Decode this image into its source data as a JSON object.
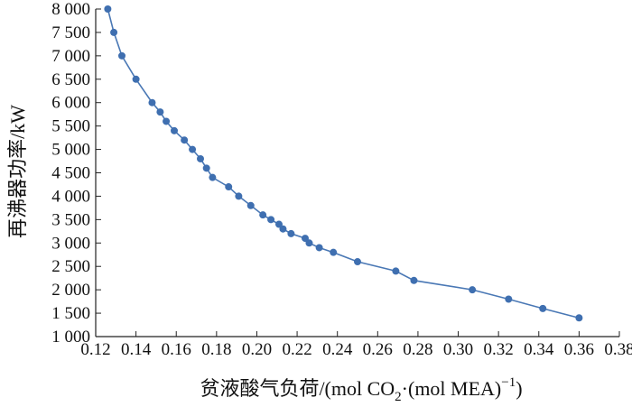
{
  "chart_data": {
    "type": "line",
    "xlabel_main": "贫液酸气负荷/(mol CO",
    "xlabel_sub": "2",
    "xlabel_mid": "·(mol MEA)",
    "xlabel_sup": "−1",
    "xlabel_end": ")",
    "ylabel": "再沸器功率/kW",
    "xlim": [
      0.12,
      0.38
    ],
    "ylim": [
      1000,
      8000
    ],
    "x_ticks": [
      0.12,
      0.14,
      0.16,
      0.18,
      0.2,
      0.22,
      0.24,
      0.26,
      0.28,
      0.3,
      0.32,
      0.34,
      0.36,
      0.38
    ],
    "x_tick_labels": [
      "0.12",
      "0.14",
      "0.16",
      "0.18",
      "0.20",
      "0.22",
      "0.24",
      "0.26",
      "0.28",
      "0.30",
      "0.32",
      "0.34",
      "0.36",
      "0.38"
    ],
    "y_ticks": [
      1000,
      1500,
      2000,
      2500,
      3000,
      3500,
      4000,
      4500,
      5000,
      5500,
      6000,
      6500,
      7000,
      7500,
      8000
    ],
    "y_tick_labels": [
      "1 000",
      "1 500",
      "2 000",
      "2 500",
      "3 000",
      "3 500",
      "4 000",
      "4 500",
      "5 000",
      "5 500",
      "6 000",
      "6 500",
      "7 000",
      "7 500",
      "8 000"
    ],
    "grid": false,
    "line_color": "#4a78b5",
    "marker_color": "#3f6fb0",
    "series": [
      {
        "x": [
          0.126,
          0.129,
          0.133,
          0.14,
          0.148,
          0.152,
          0.155,
          0.159,
          0.164,
          0.168,
          0.172,
          0.175,
          0.178,
          0.186,
          0.191,
          0.197,
          0.203,
          0.207,
          0.211,
          0.213,
          0.217,
          0.224,
          0.226,
          0.231,
          0.238,
          0.25,
          0.269,
          0.278,
          0.307,
          0.325,
          0.342,
          0.36
        ],
        "y": [
          8000,
          7500,
          7000,
          6500,
          6000,
          5800,
          5600,
          5400,
          5200,
          5000,
          4800,
          4600,
          4400,
          4200,
          4000,
          3800,
          3600,
          3500,
          3400,
          3300,
          3200,
          3100,
          3000,
          2900,
          2800,
          2600,
          2400,
          2200,
          2000,
          1800,
          1600,
          1400
        ]
      }
    ]
  }
}
